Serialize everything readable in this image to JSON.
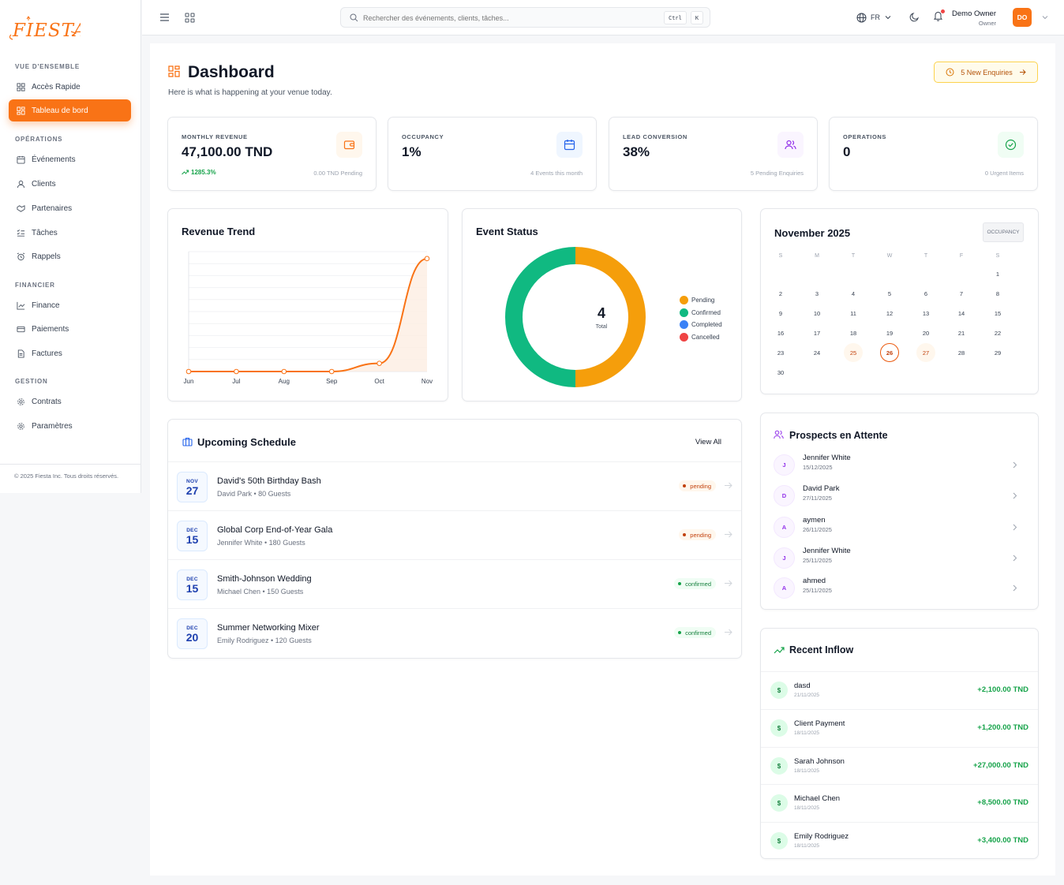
{
  "brand": {
    "name": "FIESTA"
  },
  "sidebar": {
    "sections": [
      {
        "title": "VUE D'ENSEMBLE",
        "items": [
          {
            "label": "Accès Rapide",
            "icon": "grid-icon"
          },
          {
            "label": "Tableau de bord",
            "icon": "dashboard-icon",
            "active": true
          }
        ]
      },
      {
        "title": "OPÉRATIONS",
        "items": [
          {
            "label": "Événements",
            "icon": "calendar-icon"
          },
          {
            "label": "Clients",
            "icon": "user-icon"
          },
          {
            "label": "Partenaires",
            "icon": "handshake-icon"
          },
          {
            "label": "Tâches",
            "icon": "checklist-icon"
          },
          {
            "label": "Rappels",
            "icon": "alarm-icon"
          }
        ]
      },
      {
        "title": "FINANCIER",
        "items": [
          {
            "label": "Finance",
            "icon": "line-chart-icon"
          },
          {
            "label": "Paiements",
            "icon": "credit-card-icon"
          },
          {
            "label": "Factures",
            "icon": "file-icon"
          }
        ]
      },
      {
        "title": "GESTION",
        "items": [
          {
            "label": "Contrats",
            "icon": "gear-icon"
          },
          {
            "label": "Paramètres",
            "icon": "gear-icon"
          }
        ]
      }
    ],
    "footer": "© 2025 Fiesta Inc. Tous droits réservés."
  },
  "topbar": {
    "search_placeholder": "Rechercher des événements, clients, tâches...",
    "shortcut_ctrl": "Ctrl",
    "shortcut_k": "K",
    "language": "FR",
    "user_name": "Demo Owner",
    "user_role": "Owner",
    "user_initials": "DO"
  },
  "header": {
    "title": "Dashboard",
    "subtitle": "Here is what is happening at your venue today.",
    "enquiries_button": "5 New Enquiries"
  },
  "kpis": [
    {
      "label": "MONTHLY REVENUE",
      "value": "47,100.00 TND",
      "trend": "1285.3%",
      "sub": "0.00 TND Pending",
      "icon": "wallet-icon",
      "color": "#f97316",
      "bg": "#fff7ed"
    },
    {
      "label": "OCCUPANCY",
      "value": "1%",
      "sub": "4 Events this month",
      "icon": "calendar-icon",
      "color": "#2563eb",
      "bg": "#eff6ff"
    },
    {
      "label": "LEAD CONVERSION",
      "value": "38%",
      "sub": "5 Pending Enquiries",
      "icon": "users-icon",
      "color": "#9333ea",
      "bg": "#faf5ff"
    },
    {
      "label": "OPERATIONS",
      "value": "0",
      "sub": "0 Urgent Items",
      "icon": "check-circle-icon",
      "color": "#16a34a",
      "bg": "#f0fdf4"
    }
  ],
  "revenue_trend": {
    "title": "Revenue Trend",
    "chart_data": {
      "type": "area",
      "categories": [
        "Jun",
        "Jul",
        "Aug",
        "Sep",
        "Oct",
        "Nov"
      ],
      "values": [
        0,
        0,
        0,
        0,
        3400,
        47100
      ],
      "ylim": [
        0,
        50000
      ],
      "grid": true,
      "color": "#f97316"
    }
  },
  "event_status": {
    "title": "Event Status",
    "total": "4",
    "total_label": "Total",
    "chart_data": {
      "type": "pie",
      "categories": [
        "Pending",
        "Confirmed",
        "Completed",
        "Cancelled"
      ],
      "values": [
        2,
        2,
        0,
        0
      ],
      "colors": [
        "#f59e0b",
        "#10b981",
        "#3b82f6",
        "#ef4444"
      ],
      "legend": "right"
    }
  },
  "calendar": {
    "title": "November 2025",
    "badge": "OCCUPANCY",
    "weekdays": [
      "S",
      "M",
      "T",
      "W",
      "T",
      "F",
      "S"
    ],
    "first_weekday": 6,
    "days": 30,
    "today": 26,
    "event_days": [
      25,
      27
    ]
  },
  "schedule": {
    "title": "Upcoming Schedule",
    "view_all": "View All",
    "events": [
      {
        "month": "NOV",
        "day": "27",
        "title": "David's 50th Birthday Bash",
        "sub": "David Park • 80 Guests",
        "status": "pending"
      },
      {
        "month": "DEC",
        "day": "15",
        "title": "Global Corp End-of-Year Gala",
        "sub": "Jennifer White • 180 Guests",
        "status": "pending"
      },
      {
        "month": "DEC",
        "day": "15",
        "title": "Smith-Johnson Wedding",
        "sub": "Michael Chen • 150 Guests",
        "status": "confirmed"
      },
      {
        "month": "DEC",
        "day": "20",
        "title": "Summer Networking Mixer",
        "sub": "Emily Rodriguez • 120 Guests",
        "status": "confirmed"
      }
    ]
  },
  "prospects": {
    "title": "Prospects en Attente",
    "items": [
      {
        "initial": "J",
        "name": "Jennifer White",
        "date": "15/12/2025"
      },
      {
        "initial": "D",
        "name": "David Park",
        "date": "27/11/2025"
      },
      {
        "initial": "A",
        "name": "aymen",
        "date": "26/11/2025"
      },
      {
        "initial": "J",
        "name": "Jennifer White",
        "date": "25/11/2025"
      },
      {
        "initial": "A",
        "name": "ahmed",
        "date": "25/11/2025"
      }
    ]
  },
  "inflow": {
    "title": "Recent Inflow",
    "items": [
      {
        "icon": "$",
        "name": "dasd",
        "date": "21/11/2025",
        "amount": "+2,100.00 TND"
      },
      {
        "icon": "$",
        "name": "Client Payment",
        "date": "18/11/2025",
        "amount": "+1,200.00 TND"
      },
      {
        "icon": "$",
        "name": "Sarah Johnson",
        "date": "18/11/2025",
        "amount": "+27,000.00 TND"
      },
      {
        "icon": "$",
        "name": "Michael Chen",
        "date": "18/11/2025",
        "amount": "+8,500.00 TND"
      },
      {
        "icon": "$",
        "name": "Emily Rodriguez",
        "date": "18/11/2025",
        "amount": "+3,400.00 TND"
      }
    ]
  }
}
